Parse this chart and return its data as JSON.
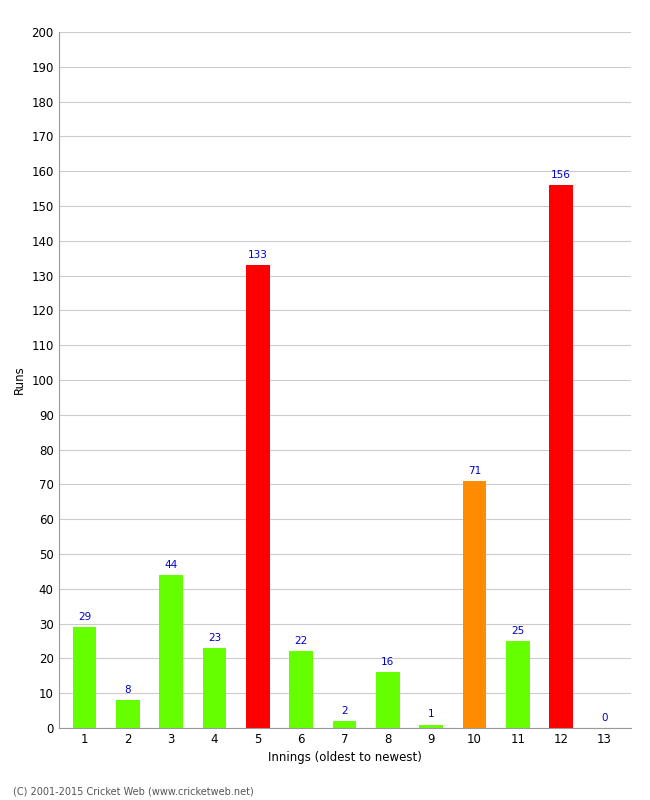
{
  "xlabel": "Innings (oldest to newest)",
  "ylabel": "Runs",
  "categories": [
    1,
    2,
    3,
    4,
    5,
    6,
    7,
    8,
    9,
    10,
    11,
    12,
    13
  ],
  "values": [
    29,
    8,
    44,
    23,
    133,
    22,
    2,
    16,
    1,
    71,
    25,
    156,
    0
  ],
  "bar_colors": [
    "#66ff00",
    "#66ff00",
    "#66ff00",
    "#66ff00",
    "#ff0000",
    "#66ff00",
    "#66ff00",
    "#66ff00",
    "#66ff00",
    "#ff8c00",
    "#66ff00",
    "#ff0000",
    "#66ff00"
  ],
  "ylim": [
    0,
    200
  ],
  "yticks": [
    0,
    10,
    20,
    30,
    40,
    50,
    60,
    70,
    80,
    90,
    100,
    110,
    120,
    130,
    140,
    150,
    160,
    170,
    180,
    190,
    200
  ],
  "label_color": "#0000cc",
  "label_fontsize": 7.5,
  "axis_fontsize": 8.5,
  "ylabel_fontsize": 8.5,
  "background_color": "#ffffff",
  "grid_color": "#cccccc",
  "footer": "(C) 2001-2015 Cricket Web (www.cricketweb.net)"
}
